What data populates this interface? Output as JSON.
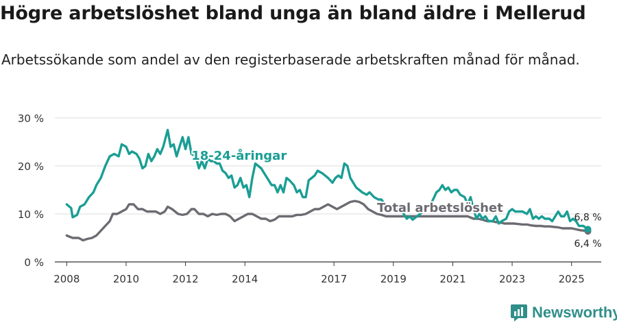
{
  "title": "Högre arbetslöshet bland unga än bland äldre i Mellerud",
  "subtitle": "Arbetssökande som andel av den registerbaserade arbetskraften månad för månad.",
  "brand": {
    "name": "Newsworthy",
    "icon": "bar-chart-logo-icon",
    "color": "#2f8f8a"
  },
  "chart_data": {
    "type": "line",
    "title": "Högre arbetslöshet bland unga än bland äldre i Mellerud",
    "xlabel": "",
    "ylabel": "",
    "xlim": [
      2007.6,
      2026.0
    ],
    "ylim": [
      0,
      30
    ],
    "grid": true,
    "y_ticks": [
      0,
      10,
      20,
      30
    ],
    "y_tick_labels": [
      "0 %",
      "10 %",
      "20 %",
      "30 %"
    ],
    "x_ticks": [
      2008,
      2010,
      2012,
      2014,
      2017,
      2019,
      2021,
      2023,
      2025
    ],
    "x_tick_labels": [
      "2008",
      "2010",
      "2012",
      "2014",
      "2017",
      "2019",
      "2021",
      "2023",
      "2025"
    ],
    "series": [
      {
        "name": "18-24-åringar",
        "color": "#1a9e94",
        "label": "18-24-åringar",
        "end_label": "6,8 %",
        "points": [
          [
            2008.0,
            12.0
          ],
          [
            2008.15,
            11.2
          ],
          [
            2008.2,
            9.3
          ],
          [
            2008.35,
            9.8
          ],
          [
            2008.45,
            11.5
          ],
          [
            2008.6,
            12.0
          ],
          [
            2008.75,
            13.5
          ],
          [
            2008.9,
            14.5
          ],
          [
            2009.0,
            16.0
          ],
          [
            2009.15,
            17.5
          ],
          [
            2009.3,
            20.0
          ],
          [
            2009.45,
            22.0
          ],
          [
            2009.6,
            22.5
          ],
          [
            2009.75,
            22.0
          ],
          [
            2009.85,
            24.5
          ],
          [
            2010.0,
            24.0
          ],
          [
            2010.1,
            22.5
          ],
          [
            2010.2,
            23.0
          ],
          [
            2010.35,
            22.5
          ],
          [
            2010.45,
            21.5
          ],
          [
            2010.55,
            19.5
          ],
          [
            2010.65,
            20.0
          ],
          [
            2010.75,
            22.5
          ],
          [
            2010.85,
            21.0
          ],
          [
            2010.95,
            22.0
          ],
          [
            2011.05,
            23.5
          ],
          [
            2011.15,
            22.5
          ],
          [
            2011.25,
            24.0
          ],
          [
            2011.4,
            27.5
          ],
          [
            2011.5,
            24.0
          ],
          [
            2011.6,
            24.5
          ],
          [
            2011.7,
            22.0
          ],
          [
            2011.8,
            24.0
          ],
          [
            2011.9,
            26.0
          ],
          [
            2012.0,
            23.5
          ],
          [
            2012.1,
            26.0
          ],
          [
            2012.2,
            22.5
          ],
          [
            2012.35,
            22.0
          ],
          [
            2012.45,
            19.5
          ],
          [
            2012.55,
            21.0
          ],
          [
            2012.65,
            19.5
          ],
          [
            2012.75,
            21.5
          ],
          [
            2012.85,
            21.0
          ],
          [
            2012.95,
            21.0
          ],
          [
            2013.05,
            20.5
          ],
          [
            2013.15,
            20.5
          ],
          [
            2013.25,
            19.0
          ],
          [
            2013.35,
            18.5
          ],
          [
            2013.45,
            17.5
          ],
          [
            2013.55,
            18.0
          ],
          [
            2013.65,
            15.5
          ],
          [
            2013.75,
            16.0
          ],
          [
            2013.85,
            17.5
          ],
          [
            2013.95,
            15.5
          ],
          [
            2014.05,
            16.0
          ],
          [
            2014.15,
            13.5
          ],
          [
            2014.25,
            17.5
          ],
          [
            2014.35,
            20.5
          ],
          [
            2014.45,
            20.0
          ],
          [
            2014.55,
            19.5
          ],
          [
            2014.7,
            18.0
          ],
          [
            2014.8,
            17.0
          ],
          [
            2014.9,
            16.0
          ],
          [
            2015.0,
            16.0
          ],
          [
            2015.1,
            14.5
          ],
          [
            2015.2,
            16.0
          ],
          [
            2015.3,
            14.5
          ],
          [
            2015.4,
            17.5
          ],
          [
            2015.5,
            17.0
          ],
          [
            2015.65,
            16.0
          ],
          [
            2015.75,
            14.5
          ],
          [
            2015.85,
            15.0
          ],
          [
            2015.95,
            13.5
          ],
          [
            2016.05,
            13.5
          ],
          [
            2016.15,
            17.0
          ],
          [
            2016.25,
            17.5
          ],
          [
            2016.35,
            18.0
          ],
          [
            2016.45,
            19.0
          ],
          [
            2016.6,
            18.5
          ],
          [
            2016.7,
            18.0
          ],
          [
            2016.8,
            17.5
          ],
          [
            2016.95,
            16.5
          ],
          [
            2017.05,
            17.5
          ],
          [
            2017.15,
            18.0
          ],
          [
            2017.25,
            17.5
          ],
          [
            2017.35,
            20.5
          ],
          [
            2017.45,
            20.0
          ],
          [
            2017.55,
            17.5
          ],
          [
            2017.65,
            16.5
          ],
          [
            2017.75,
            15.5
          ],
          [
            2017.85,
            15.0
          ],
          [
            2017.95,
            14.5
          ],
          [
            2018.1,
            14.0
          ],
          [
            2018.2,
            14.5
          ],
          [
            2018.35,
            13.5
          ],
          [
            2018.5,
            13.0
          ],
          [
            2018.6,
            13.0
          ],
          [
            2018.7,
            12.0
          ],
          [
            2019.3,
            10.5
          ],
          [
            2019.45,
            9.0
          ],
          [
            2019.55,
            9.5
          ],
          [
            2019.65,
            8.8
          ],
          [
            2019.8,
            9.5
          ],
          [
            2020.0,
            10.5
          ],
          [
            2020.15,
            11.5
          ],
          [
            2020.3,
            12.5
          ],
          [
            2020.45,
            14.5
          ],
          [
            2020.55,
            15.0
          ],
          [
            2020.65,
            16.0
          ],
          [
            2020.75,
            15.0
          ],
          [
            2020.85,
            15.5
          ],
          [
            2020.95,
            14.5
          ],
          [
            2021.05,
            15.0
          ],
          [
            2021.15,
            15.0
          ],
          [
            2021.25,
            14.0
          ],
          [
            2021.4,
            13.5
          ],
          [
            2021.5,
            12.0
          ],
          [
            2021.6,
            13.5
          ],
          [
            2021.7,
            11.0
          ],
          [
            2021.8,
            9.0
          ],
          [
            2021.9,
            10.0
          ],
          [
            2022.0,
            9.0
          ],
          [
            2022.1,
            9.5
          ],
          [
            2022.2,
            8.5
          ],
          [
            2022.35,
            8.5
          ],
          [
            2022.45,
            9.5
          ],
          [
            2022.55,
            8.0
          ],
          [
            2022.65,
            8.5
          ],
          [
            2022.8,
            9.0
          ],
          [
            2022.9,
            10.5
          ],
          [
            2023.0,
            11.0
          ],
          [
            2023.1,
            10.5
          ],
          [
            2023.2,
            10.5
          ],
          [
            2023.35,
            10.5
          ],
          [
            2023.5,
            10.0
          ],
          [
            2023.6,
            11.0
          ],
          [
            2023.7,
            9.0
          ],
          [
            2023.8,
            9.5
          ],
          [
            2023.9,
            9.0
          ],
          [
            2024.0,
            9.5
          ],
          [
            2024.1,
            9.0
          ],
          [
            2024.25,
            9.0
          ],
          [
            2024.35,
            8.5
          ],
          [
            2024.45,
            9.5
          ],
          [
            2024.55,
            10.5
          ],
          [
            2024.65,
            9.5
          ],
          [
            2024.75,
            9.5
          ],
          [
            2024.85,
            10.5
          ],
          [
            2024.95,
            8.5
          ],
          [
            2025.05,
            9.0
          ],
          [
            2025.15,
            8.5
          ],
          [
            2025.25,
            7.5
          ],
          [
            2025.4,
            7.5
          ],
          [
            2025.55,
            6.8
          ]
        ]
      },
      {
        "name": "Total arbetslöshet",
        "color": "#6b6b72",
        "label": "Total arbetslöshet",
        "end_label": "6,4 %",
        "points": [
          [
            2008.0,
            5.5
          ],
          [
            2008.2,
            5.0
          ],
          [
            2008.4,
            5.0
          ],
          [
            2008.55,
            4.5
          ],
          [
            2008.7,
            4.8
          ],
          [
            2008.85,
            5.0
          ],
          [
            2009.0,
            5.5
          ],
          [
            2009.15,
            6.5
          ],
          [
            2009.3,
            7.5
          ],
          [
            2009.45,
            8.5
          ],
          [
            2009.55,
            10.0
          ],
          [
            2009.7,
            10.0
          ],
          [
            2009.85,
            10.5
          ],
          [
            2010.0,
            11.0
          ],
          [
            2010.1,
            12.0
          ],
          [
            2010.25,
            12.0
          ],
          [
            2010.4,
            11.0
          ],
          [
            2010.55,
            11.0
          ],
          [
            2010.7,
            10.5
          ],
          [
            2010.85,
            10.5
          ],
          [
            2011.0,
            10.5
          ],
          [
            2011.15,
            10.0
          ],
          [
            2011.3,
            10.5
          ],
          [
            2011.4,
            11.5
          ],
          [
            2011.55,
            11.0
          ],
          [
            2011.65,
            10.5
          ],
          [
            2011.75,
            10.0
          ],
          [
            2011.9,
            9.8
          ],
          [
            2012.05,
            10.0
          ],
          [
            2012.2,
            11.0
          ],
          [
            2012.3,
            11.0
          ],
          [
            2012.45,
            10.0
          ],
          [
            2012.6,
            10.0
          ],
          [
            2012.75,
            9.5
          ],
          [
            2012.9,
            10.0
          ],
          [
            2013.05,
            9.8
          ],
          [
            2013.2,
            10.0
          ],
          [
            2013.35,
            10.0
          ],
          [
            2013.5,
            9.5
          ],
          [
            2013.65,
            8.5
          ],
          [
            2013.8,
            9.0
          ],
          [
            2013.95,
            9.5
          ],
          [
            2014.1,
            10.0
          ],
          [
            2014.25,
            10.0
          ],
          [
            2014.4,
            9.5
          ],
          [
            2014.55,
            9.0
          ],
          [
            2014.7,
            9.0
          ],
          [
            2014.85,
            8.5
          ],
          [
            2015.0,
            8.8
          ],
          [
            2015.15,
            9.5
          ],
          [
            2015.3,
            9.5
          ],
          [
            2015.45,
            9.5
          ],
          [
            2015.6,
            9.5
          ],
          [
            2015.75,
            9.8
          ],
          [
            2015.9,
            9.8
          ],
          [
            2016.05,
            10.0
          ],
          [
            2016.2,
            10.5
          ],
          [
            2016.35,
            11.0
          ],
          [
            2016.5,
            11.0
          ],
          [
            2016.65,
            11.5
          ],
          [
            2016.8,
            12.0
          ],
          [
            2016.95,
            11.5
          ],
          [
            2017.1,
            11.0
          ],
          [
            2017.25,
            11.5
          ],
          [
            2017.4,
            12.0
          ],
          [
            2017.55,
            12.5
          ],
          [
            2017.7,
            12.7
          ],
          [
            2017.85,
            12.5
          ],
          [
            2018.0,
            12.0
          ],
          [
            2018.15,
            11.0
          ],
          [
            2018.3,
            10.5
          ],
          [
            2018.45,
            10.0
          ],
          [
            2018.6,
            9.8
          ],
          [
            2018.75,
            9.5
          ],
          [
            2019.3,
            9.5
          ],
          [
            2020.5,
            9.5
          ],
          [
            2021.5,
            9.5
          ],
          [
            2021.7,
            9.0
          ],
          [
            2021.85,
            9.0
          ],
          [
            2022.0,
            8.8
          ],
          [
            2022.15,
            8.5
          ],
          [
            2022.3,
            8.5
          ],
          [
            2022.45,
            8.3
          ],
          [
            2022.6,
            8.2
          ],
          [
            2022.75,
            8.0
          ],
          [
            2022.9,
            8.0
          ],
          [
            2023.05,
            8.0
          ],
          [
            2023.2,
            7.9
          ],
          [
            2023.35,
            7.8
          ],
          [
            2023.5,
            7.8
          ],
          [
            2023.65,
            7.6
          ],
          [
            2023.8,
            7.5
          ],
          [
            2023.95,
            7.5
          ],
          [
            2024.1,
            7.4
          ],
          [
            2024.25,
            7.4
          ],
          [
            2024.4,
            7.3
          ],
          [
            2024.55,
            7.2
          ],
          [
            2024.7,
            7.0
          ],
          [
            2024.85,
            7.0
          ],
          [
            2025.0,
            7.0
          ],
          [
            2025.15,
            6.8
          ],
          [
            2025.3,
            6.6
          ],
          [
            2025.45,
            6.5
          ],
          [
            2025.55,
            6.4
          ]
        ]
      }
    ]
  }
}
